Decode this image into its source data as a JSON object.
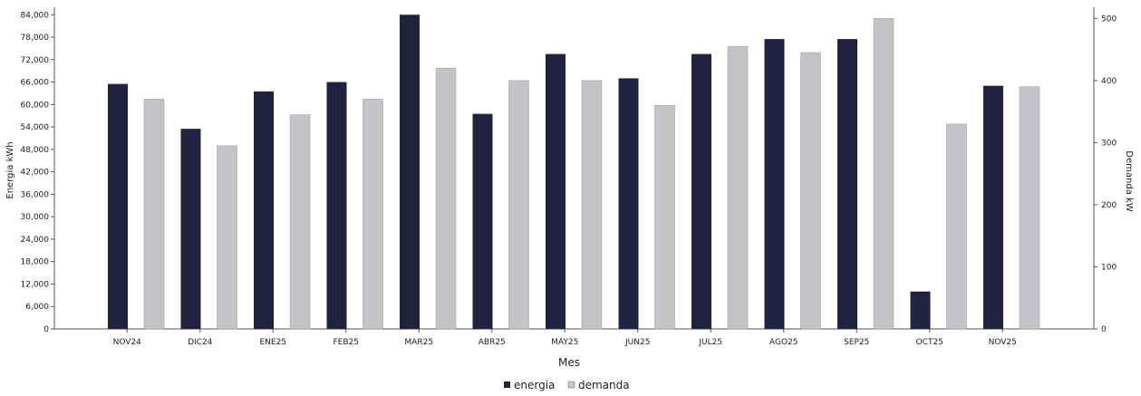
{
  "chart_data": {
    "type": "bar",
    "title": "",
    "xlabel": "Mes",
    "ylabel": "Energia kWh",
    "y2label": "Demanda kW",
    "categories": [
      "NOV24",
      "DIC24",
      "ENE25",
      "FEB25",
      "MAR25",
      "ABR25",
      "MAY25",
      "JUN25",
      "JUL25",
      "AGO25",
      "SEP25",
      "OCT25",
      "NOV25"
    ],
    "series": [
      {
        "name": "energia",
        "axis": "left",
        "color": "#1f2340",
        "values": [
          65500,
          53500,
          63500,
          66000,
          84000,
          57500,
          73500,
          67000,
          73500,
          77500,
          77500,
          10000,
          65000
        ]
      },
      {
        "name": "demanda",
        "axis": "right",
        "color": "#c4c4c8",
        "values": [
          370,
          295,
          345,
          370,
          420,
          400,
          400,
          360,
          455,
          445,
          500,
          330,
          390
        ]
      }
    ],
    "ylim": [
      0,
      86000
    ],
    "yticks": [
      0,
      6000,
      12000,
      18000,
      24000,
      30000,
      36000,
      42000,
      48000,
      54000,
      60000,
      66000,
      72000,
      78000,
      84000
    ],
    "ytick_labels": [
      "0",
      "6,000",
      "12,000",
      "18,000",
      "24,000",
      "30,000",
      "36,000",
      "42,000",
      "48,000",
      "54,000",
      "60,000",
      "66,000",
      "72,000",
      "78,000",
      "84,000"
    ],
    "y2lim": [
      0,
      518
    ],
    "y2ticks": [
      0,
      100,
      200,
      300,
      400,
      500
    ],
    "y2tick_labels": [
      "0",
      "100",
      "200",
      "300",
      "400",
      "500"
    ],
    "legend": {
      "position": "bottom-center",
      "entries": [
        "energia",
        "demanda"
      ]
    },
    "grid": false
  }
}
